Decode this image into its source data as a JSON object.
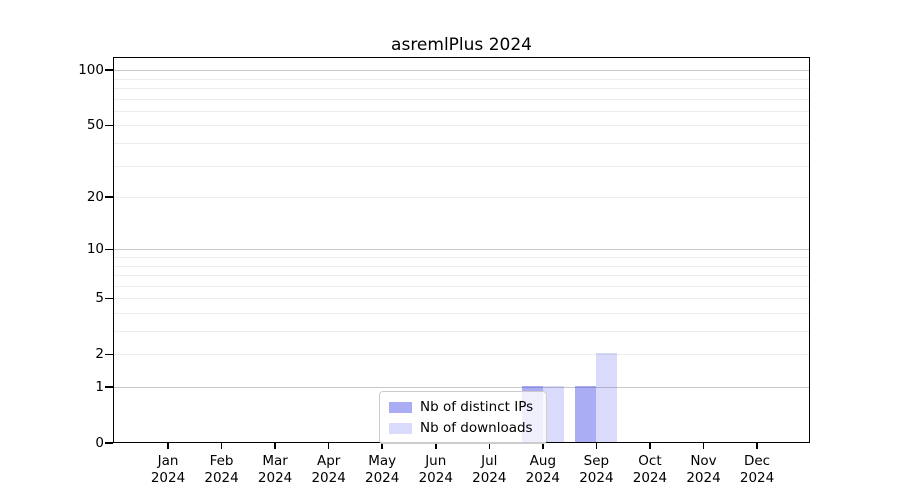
{
  "title": "asremlPlus 2024",
  "legend": {
    "items": [
      {
        "label": "Nb of distinct IPs",
        "color": "rgba(70,75,230,0.46)"
      },
      {
        "label": "Nb of downloads",
        "color": "rgba(70,75,230,0.20)"
      }
    ]
  },
  "chart_data": {
    "type": "bar",
    "title": "asremlPlus 2024",
    "categories": [
      "Jan 2024",
      "Feb 2024",
      "Mar 2024",
      "Apr 2024",
      "May 2024",
      "Jun 2024",
      "Jul 2024",
      "Aug 2024",
      "Sep 2024",
      "Oct 2024",
      "Nov 2024",
      "Dec 2024"
    ],
    "series": [
      {
        "name": "Nb of distinct IPs",
        "color": "rgba(70,75,230,0.46)",
        "values": [
          0,
          0,
          0,
          0,
          0,
          0,
          0,
          1,
          1,
          0,
          0,
          0
        ]
      },
      {
        "name": "Nb of downloads",
        "color": "rgba(70,75,230,0.20)",
        "values": [
          0,
          0,
          0,
          0,
          0,
          0,
          0,
          1,
          2,
          0,
          0,
          0
        ]
      }
    ],
    "xlabel": "",
    "ylabel": "",
    "y_scale": "log1p",
    "ylim": [
      0,
      118
    ],
    "y_ticks_labeled": [
      0,
      1,
      2,
      5,
      10,
      20,
      50,
      100
    ],
    "y_grid_major": [
      1,
      10,
      100
    ],
    "y_grid_minor": [
      2,
      3,
      4,
      5,
      6,
      7,
      8,
      9,
      20,
      30,
      40,
      50,
      60,
      70,
      80,
      90
    ],
    "grid": "horizontal",
    "legend_position": "bottom-center-right inside plot",
    "colors": {
      "bar_ips_on_white": "#abadf3",
      "bar_downloads_on_white": "#dcddf8",
      "grid_major": "#c9c9c9",
      "grid_minor": "#ececec",
      "frame": "#000000",
      "legend_border": "#cccccc"
    }
  }
}
